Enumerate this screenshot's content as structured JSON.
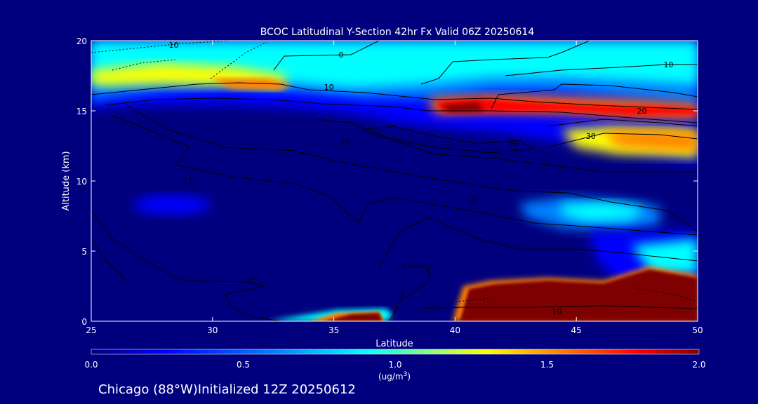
{
  "chart_data": {
    "type": "heatmap",
    "title": "BCOC Latitudinal Y-Section 42hr  Fx Valid 06Z 20250614",
    "xlabel": "Latitude",
    "ylabel": "Altitude (km)",
    "xlim": [
      25,
      50
    ],
    "ylim": [
      0,
      20
    ],
    "x_ticks": [
      25,
      30,
      35,
      40,
      45,
      50
    ],
    "y_ticks": [
      0,
      5,
      10,
      15,
      20
    ],
    "x_tick_labels": [
      "25",
      "30",
      "35",
      "40",
      "45",
      "50"
    ],
    "y_tick_labels": [
      "0",
      "5",
      "10",
      "15",
      "20"
    ],
    "colorbar": {
      "min": 0.0,
      "max": 2.0,
      "ticks": [
        0.0,
        0.5,
        1.0,
        1.5,
        2.0
      ],
      "tick_labels": [
        "0.0",
        "0.5",
        "1.0",
        "1.5",
        "2.0"
      ],
      "unit": "(ug/m",
      "unit_exp": "3",
      "unit_close": ")",
      "colors": [
        "#00007f",
        "#0000ff",
        "#0080ff",
        "#00ffff",
        "#80ff80",
        "#ffff00",
        "#ff8000",
        "#ff0000",
        "#7f0000"
      ]
    },
    "contour_labels": [
      {
        "text": "10",
        "lat": 28.4,
        "alt": 19.7
      },
      {
        "text": "0",
        "lat": 35.3,
        "alt": 19.0
      },
      {
        "text": "10",
        "lat": 48.8,
        "alt": 18.3
      },
      {
        "text": "10",
        "lat": 34.8,
        "alt": 16.7
      },
      {
        "text": "20",
        "lat": 47.7,
        "alt": 15.0
      },
      {
        "text": "30",
        "lat": 42.4,
        "alt": 12.7
      },
      {
        "text": "30",
        "lat": 45.6,
        "alt": 13.2
      },
      {
        "text": "20",
        "lat": 35.5,
        "alt": 12.8
      },
      {
        "text": "10",
        "lat": 29.0,
        "alt": 10.0
      },
      {
        "text": "10",
        "lat": 40.7,
        "alt": 8.6
      },
      {
        "text": "0",
        "lat": 31.6,
        "alt": 2.9
      },
      {
        "text": "10",
        "lat": 44.2,
        "alt": 0.7
      }
    ]
  },
  "footer": {
    "location": "Chicago (88°W)Initialized 12Z 20250612"
  }
}
